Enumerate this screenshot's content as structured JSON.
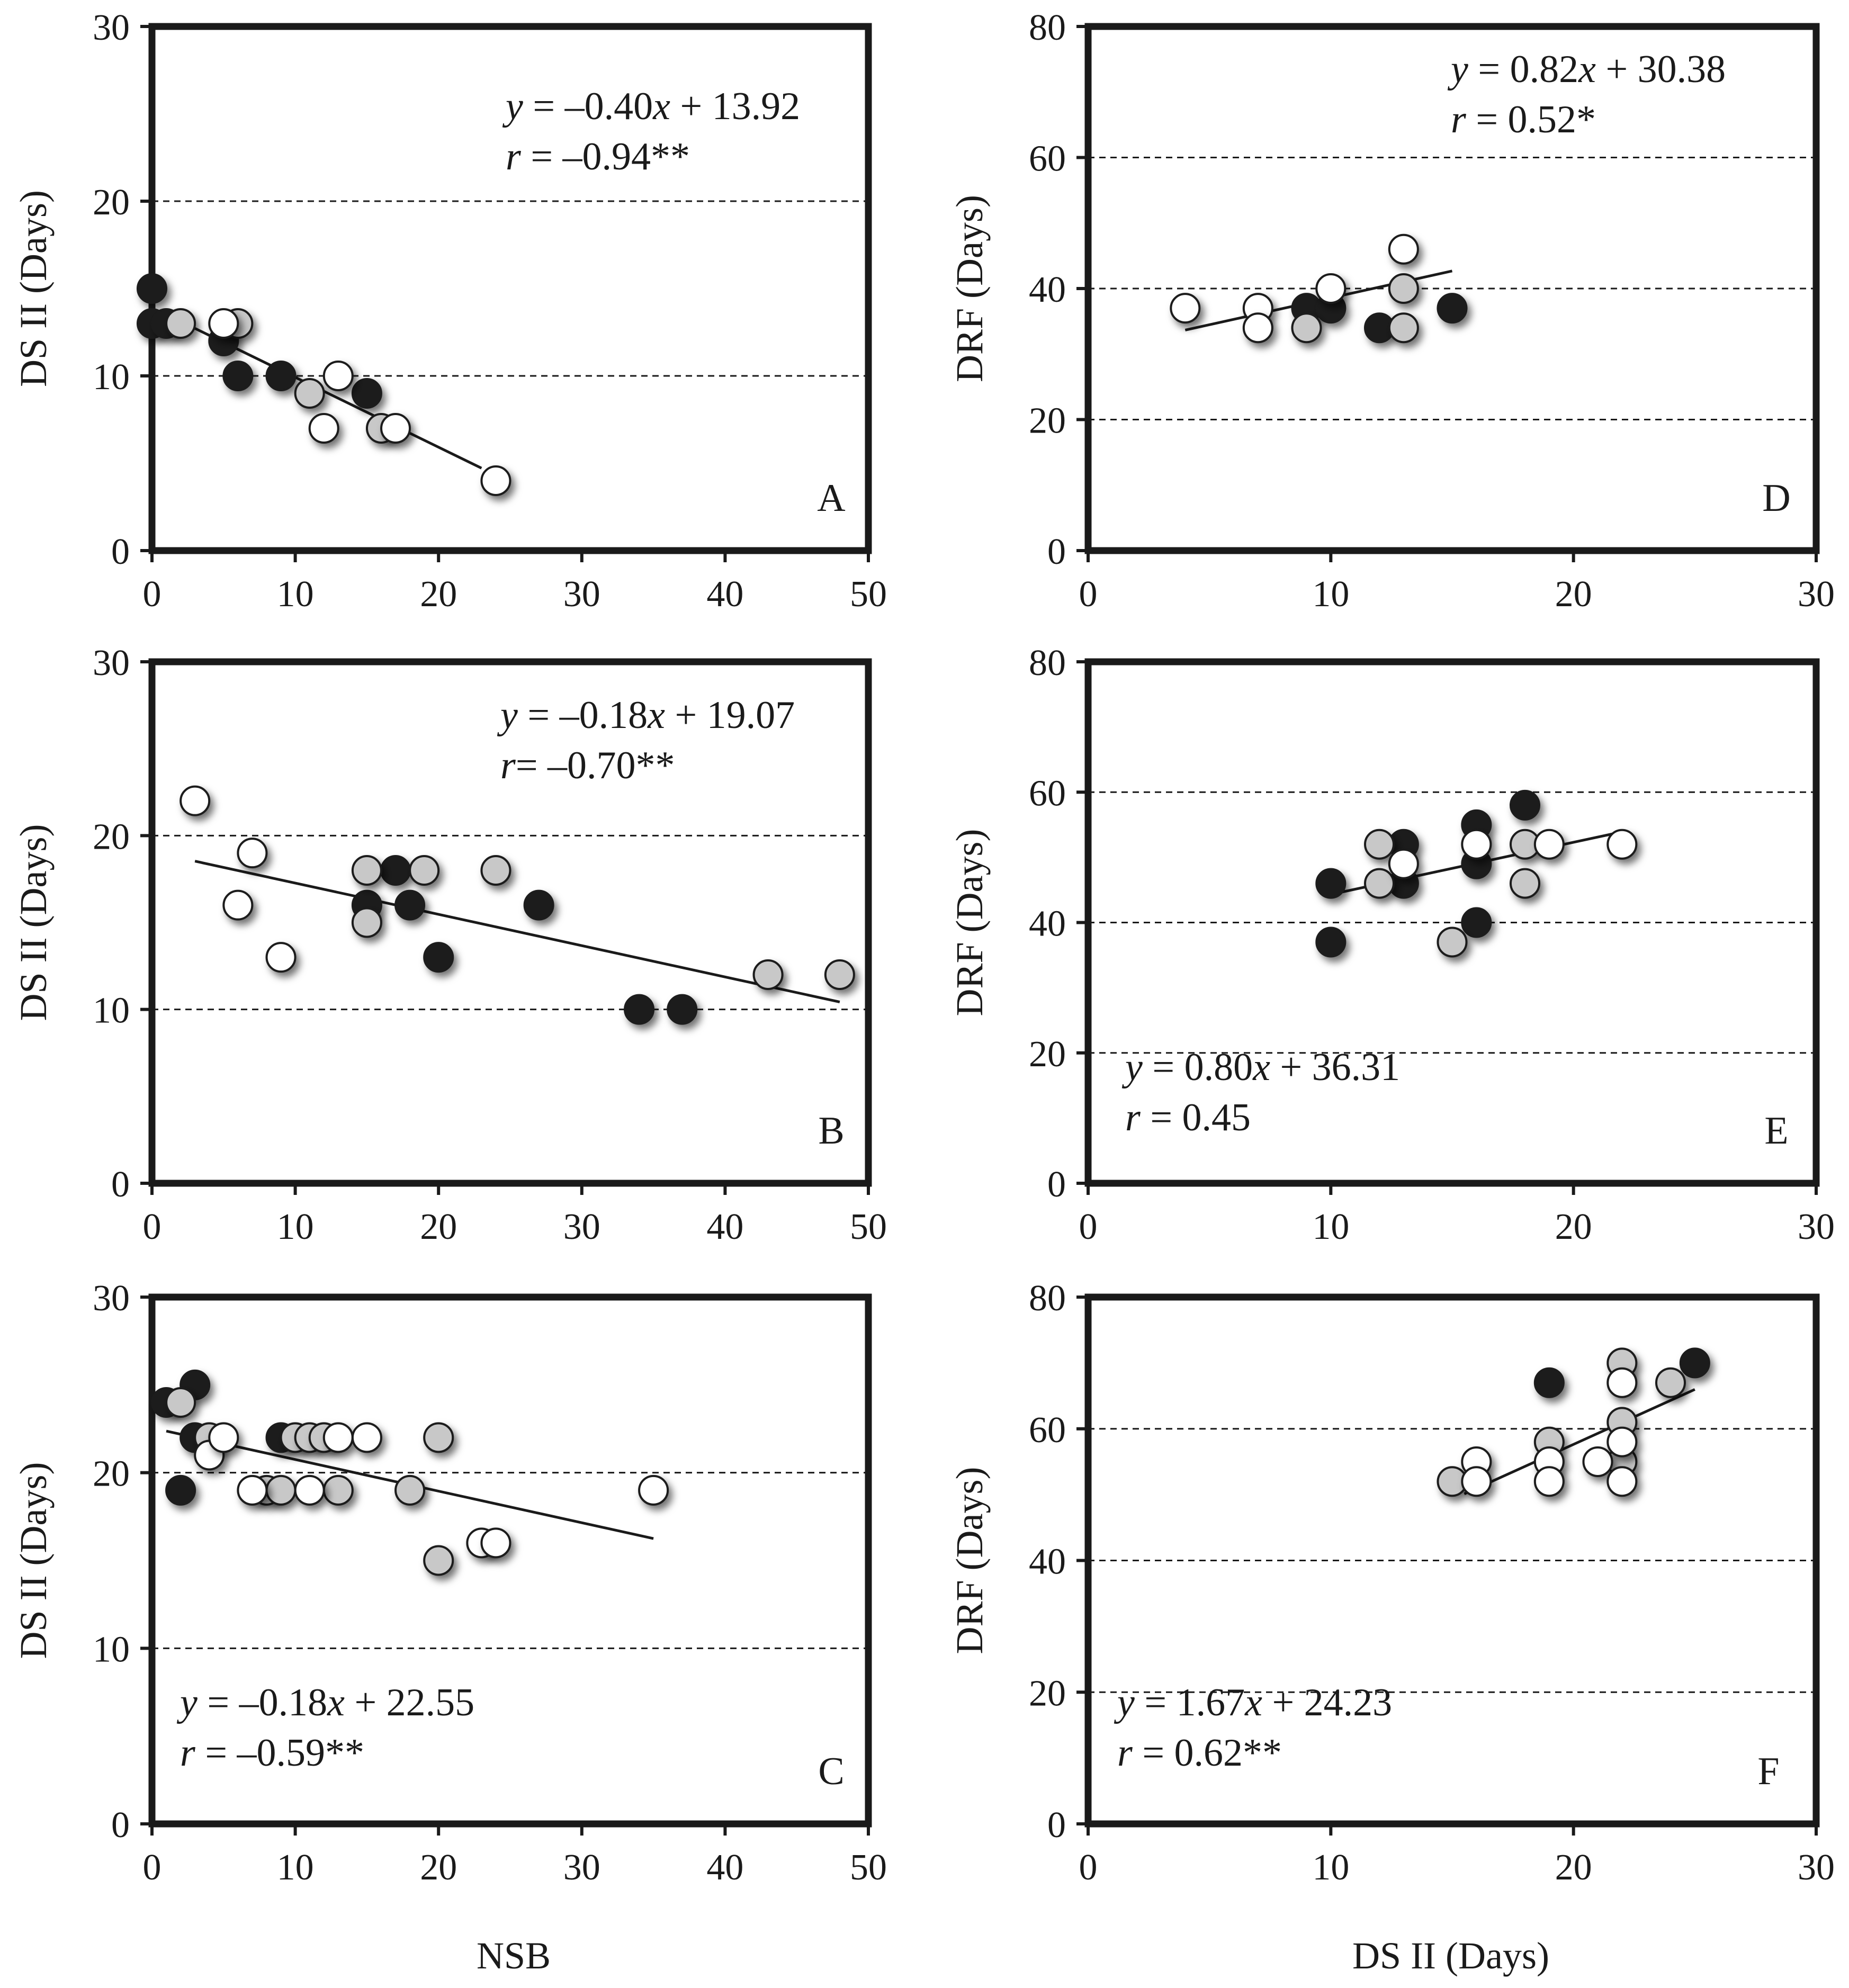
{
  "figure": {
    "bottom_xlabels": [
      "NSB",
      "DS II (Days)"
    ]
  },
  "legend_colors": {
    "black": "#1e1e1e",
    "gray": "#c8c8c8",
    "white": "#ffffff"
  },
  "chart_data": [
    {
      "id": "A",
      "type": "scatter",
      "letter": "A",
      "xlabel": "",
      "ylabel": "DS II  (Days)",
      "xlim": [
        0,
        50
      ],
      "ylim": [
        0,
        30
      ],
      "xticks": [
        0,
        10,
        20,
        30,
        40,
        50
      ],
      "yticks": [
        0,
        10,
        20,
        30
      ],
      "gridlines_y": [
        10,
        20
      ],
      "equation": "y = –0.40x + 13.92",
      "r_text": "r = –0.94**",
      "fit": {
        "slope": -0.4,
        "intercept": 13.92,
        "x_from": 1,
        "x_to": 23
      },
      "series": [
        {
          "name": "black",
          "points": [
            [
              0,
              15
            ],
            [
              0,
              13
            ],
            [
              1,
              13
            ],
            [
              5,
              12
            ],
            [
              6,
              10
            ],
            [
              9,
              10
            ],
            [
              15,
              9
            ]
          ]
        },
        {
          "name": "gray",
          "points": [
            [
              2,
              13
            ],
            [
              6,
              13
            ],
            [
              11,
              9
            ],
            [
              16,
              7
            ]
          ]
        },
        {
          "name": "white",
          "points": [
            [
              5,
              13
            ],
            [
              12,
              7
            ],
            [
              13,
              10
            ],
            [
              17,
              7
            ],
            [
              24,
              4
            ]
          ]
        }
      ]
    },
    {
      "id": "D",
      "type": "scatter",
      "letter": "D",
      "xlabel": "",
      "ylabel": "DRF (Days)",
      "xlim": [
        0,
        30
      ],
      "ylim": [
        0,
        80
      ],
      "xticks": [
        0,
        10,
        20,
        30
      ],
      "yticks": [
        0,
        20,
        40,
        60,
        80
      ],
      "gridlines_y": [
        20,
        40,
        60
      ],
      "equation": "y = 0.82x + 30.38",
      "r_text": "r = 0.52*",
      "fit": {
        "slope": 0.82,
        "intercept": 30.38,
        "x_from": 4,
        "x_to": 15
      },
      "series": [
        {
          "name": "black",
          "points": [
            [
              9,
              37
            ],
            [
              10,
              37
            ],
            [
              12,
              34
            ],
            [
              15,
              37
            ]
          ]
        },
        {
          "name": "gray",
          "points": [
            [
              9,
              34
            ],
            [
              13,
              40
            ],
            [
              13,
              34
            ]
          ]
        },
        {
          "name": "white",
          "points": [
            [
              4,
              37
            ],
            [
              7,
              37
            ],
            [
              7,
              34
            ],
            [
              10,
              40
            ],
            [
              13,
              46
            ]
          ]
        }
      ]
    },
    {
      "id": "B",
      "type": "scatter",
      "letter": "B",
      "xlabel": "",
      "ylabel": "DS II  (Days)",
      "xlim": [
        0,
        50
      ],
      "ylim": [
        0,
        30
      ],
      "xticks": [
        0,
        10,
        20,
        30,
        40,
        50
      ],
      "yticks": [
        0,
        10,
        20,
        30
      ],
      "gridlines_y": [
        10,
        20
      ],
      "equation": "y = –0.18x + 19.07",
      "r_text": "r= –0.70**",
      "fit": {
        "slope": -0.18,
        "intercept": 19.07,
        "x_from": 3,
        "x_to": 48
      },
      "series": [
        {
          "name": "black",
          "points": [
            [
              15,
              16
            ],
            [
              17,
              18
            ],
            [
              18,
              16
            ],
            [
              20,
              13
            ],
            [
              27,
              16
            ],
            [
              34,
              10
            ],
            [
              37,
              10
            ]
          ]
        },
        {
          "name": "gray",
          "points": [
            [
              15,
              18
            ],
            [
              15,
              15
            ],
            [
              19,
              18
            ],
            [
              24,
              18
            ],
            [
              43,
              12
            ],
            [
              48,
              12
            ]
          ]
        },
        {
          "name": "white",
          "points": [
            [
              3,
              22
            ],
            [
              6,
              16
            ],
            [
              7,
              19
            ],
            [
              9,
              13
            ]
          ]
        }
      ]
    },
    {
      "id": "E",
      "type": "scatter",
      "letter": "E",
      "xlabel": "",
      "ylabel": "DRF (Days)",
      "xlim": [
        0,
        30
      ],
      "ylim": [
        0,
        80
      ],
      "xticks": [
        0,
        10,
        20,
        30
      ],
      "yticks": [
        0,
        20,
        40,
        60,
        80
      ],
      "gridlines_y": [
        20,
        40,
        60
      ],
      "equation": "y = 0.80x + 36.31",
      "r_text": "r = 0.45",
      "fit": {
        "slope": 0.8,
        "intercept": 36.31,
        "x_from": 10,
        "x_to": 22
      },
      "series": [
        {
          "name": "black",
          "points": [
            [
              10,
              46
            ],
            [
              10,
              37
            ],
            [
              13,
              52
            ],
            [
              13,
              46
            ],
            [
              16,
              55
            ],
            [
              16,
              49
            ],
            [
              16,
              40
            ],
            [
              18,
              58
            ]
          ]
        },
        {
          "name": "gray",
          "points": [
            [
              12,
              52
            ],
            [
              12,
              46
            ],
            [
              15,
              37
            ],
            [
              18,
              52
            ],
            [
              18,
              46
            ]
          ]
        },
        {
          "name": "white",
          "points": [
            [
              13,
              49
            ],
            [
              16,
              52
            ],
            [
              19,
              52
            ],
            [
              22,
              52
            ]
          ]
        }
      ]
    },
    {
      "id": "C",
      "type": "scatter",
      "letter": "C",
      "xlabel": "NSB",
      "ylabel": "DS II  (Days)",
      "xlim": [
        0,
        50
      ],
      "ylim": [
        0,
        30
      ],
      "xticks": [
        0,
        10,
        20,
        30,
        40,
        50
      ],
      "yticks": [
        0,
        10,
        20,
        30
      ],
      "gridlines_y": [
        10,
        20
      ],
      "equation": "y = –0.18x + 22.55",
      "r_text": "r = –0.59**",
      "fit": {
        "slope": -0.18,
        "intercept": 22.55,
        "x_from": 1,
        "x_to": 35
      },
      "series": [
        {
          "name": "black",
          "points": [
            [
              1,
              24
            ],
            [
              3,
              25
            ],
            [
              3,
              22
            ],
            [
              2,
              19
            ],
            [
              9,
              22
            ]
          ]
        },
        {
          "name": "gray",
          "points": [
            [
              2,
              24
            ],
            [
              4,
              22
            ],
            [
              8,
              19
            ],
            [
              9,
              19
            ],
            [
              10,
              22
            ],
            [
              11,
              22
            ],
            [
              12,
              22
            ],
            [
              13,
              19
            ],
            [
              18,
              19
            ],
            [
              20,
              22
            ],
            [
              20,
              15
            ]
          ]
        },
        {
          "name": "white",
          "points": [
            [
              4,
              21
            ],
            [
              5,
              22
            ],
            [
              7,
              19
            ],
            [
              11,
              19
            ],
            [
              13,
              22
            ],
            [
              15,
              22
            ],
            [
              23,
              16
            ],
            [
              24,
              16
            ],
            [
              35,
              19
            ]
          ]
        }
      ]
    },
    {
      "id": "F",
      "type": "scatter",
      "letter": "F",
      "xlabel": "DS II (Days)",
      "ylabel": "DRF (Days)",
      "xlim": [
        0,
        30
      ],
      "ylim": [
        0,
        80
      ],
      "xticks": [
        0,
        10,
        20,
        30
      ],
      "yticks": [
        0,
        20,
        40,
        60,
        80
      ],
      "gridlines_y": [
        20,
        40,
        60
      ],
      "equation": "y = 1.67x + 24.23",
      "r_text": "r = 0.62**",
      "fit": {
        "slope": 1.67,
        "intercept": 24.23,
        "x_from": 15.5,
        "x_to": 25
      },
      "series": [
        {
          "name": "black",
          "points": [
            [
              19,
              67
            ],
            [
              25,
              70
            ]
          ]
        },
        {
          "name": "gray",
          "points": [
            [
              15,
              52
            ],
            [
              19,
              58
            ],
            [
              22,
              70
            ],
            [
              22,
              61
            ],
            [
              22,
              55
            ],
            [
              24,
              67
            ]
          ]
        },
        {
          "name": "white",
          "points": [
            [
              16,
              55
            ],
            [
              16,
              52
            ],
            [
              19,
              55
            ],
            [
              19,
              52
            ],
            [
              21,
              55
            ],
            [
              22,
              67
            ],
            [
              22,
              58
            ],
            [
              22,
              52
            ]
          ]
        }
      ]
    }
  ]
}
